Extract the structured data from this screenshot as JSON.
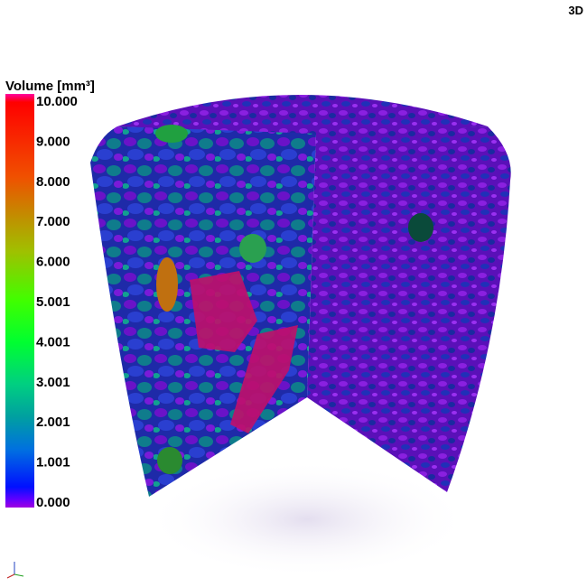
{
  "view_label": "3D",
  "colorbar": {
    "title": "Volume [mm³]",
    "ticks": [
      "10.000",
      "9.000",
      "8.000",
      "7.000",
      "6.000",
      "5.001",
      "4.001",
      "3.001",
      "2.001",
      "1.001",
      "0.000"
    ]
  }
}
